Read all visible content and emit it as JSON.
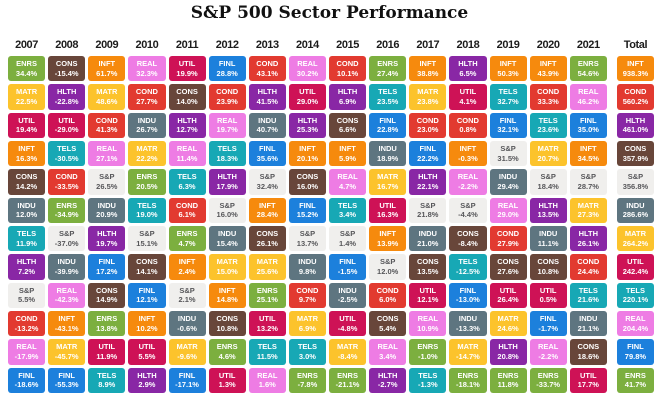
{
  "chart_data": {
    "type": "heatmap",
    "title": "S&P 500 Sector Performance",
    "note": "Quilt chart: each column ranks S&P 500 sectors by annual return, top=best. Values are percent returns.",
    "legend_position": "none",
    "value_suffix": "%",
    "sector_colors": {
      "ENRS": "#7CAF3F",
      "MATR": "#FCC32C",
      "UTIL": "#CE1256",
      "INFT": "#F68A0D",
      "CONS": "#68463A",
      "INDU": "#5E7580",
      "TELS": "#17A8B5",
      "HLTH": "#8927A5",
      "S&P": "#F0EFED",
      "COND": "#E23A30",
      "REAL": "#EE7CE4",
      "FINL": "#1C80DC"
    },
    "sector_text_colors": {
      "default": "#FFFFFF",
      "S&P": "#57575A"
    },
    "columns": [
      {
        "label": "2007",
        "cells": [
          [
            "ENRS",
            34.4
          ],
          [
            "MATR",
            22.5
          ],
          [
            "UTIL",
            19.4
          ],
          [
            "INFT",
            16.3
          ],
          [
            "CONS",
            14.2
          ],
          [
            "INDU",
            12.0
          ],
          [
            "TELS",
            11.9
          ],
          [
            "HLTH",
            7.2
          ],
          [
            "S&P",
            5.5
          ],
          [
            "COND",
            -13.2
          ],
          [
            "REAL",
            -17.9
          ],
          [
            "FINL",
            -18.6
          ]
        ]
      },
      {
        "label": "2008",
        "cells": [
          [
            "CONS",
            -15.4
          ],
          [
            "HLTH",
            -22.8
          ],
          [
            "UTIL",
            -29.0
          ],
          [
            "TELS",
            -30.5
          ],
          [
            "COND",
            -33.5
          ],
          [
            "ENRS",
            -34.9
          ],
          [
            "S&P",
            -37.0
          ],
          [
            "INDU",
            -39.9
          ],
          [
            "REAL",
            -42.3
          ],
          [
            "INFT",
            -43.1
          ],
          [
            "MATR",
            -45.7
          ],
          [
            "FINL",
            -55.3
          ]
        ]
      },
      {
        "label": "2009",
        "cells": [
          [
            "INFT",
            61.7
          ],
          [
            "MATR",
            48.6
          ],
          [
            "COND",
            41.3
          ],
          [
            "REAL",
            27.1
          ],
          [
            "S&P",
            26.5
          ],
          [
            "INDU",
            20.9
          ],
          [
            "HLTH",
            19.7
          ],
          [
            "FINL",
            17.2
          ],
          [
            "CONS",
            14.9
          ],
          [
            "ENRS",
            13.8
          ],
          [
            "UTIL",
            11.9
          ],
          [
            "TELS",
            8.9
          ]
        ]
      },
      {
        "label": "2010",
        "cells": [
          [
            "REAL",
            32.3
          ],
          [
            "COND",
            27.7
          ],
          [
            "INDU",
            26.7
          ],
          [
            "MATR",
            22.2
          ],
          [
            "ENRS",
            20.5
          ],
          [
            "TELS",
            19.0
          ],
          [
            "S&P",
            15.1
          ],
          [
            "CONS",
            14.1
          ],
          [
            "FINL",
            12.1
          ],
          [
            "INFT",
            10.2
          ],
          [
            "UTIL",
            5.5
          ],
          [
            "HLTH",
            2.9
          ]
        ]
      },
      {
        "label": "2011",
        "cells": [
          [
            "UTIL",
            19.9
          ],
          [
            "CONS",
            14.0
          ],
          [
            "HLTH",
            12.7
          ],
          [
            "REAL",
            11.4
          ],
          [
            "TELS",
            6.3
          ],
          [
            "COND",
            6.1
          ],
          [
            "ENRS",
            4.7
          ],
          [
            "INFT",
            2.4
          ],
          [
            "S&P",
            2.1
          ],
          [
            "INDU",
            -0.6
          ],
          [
            "MATR",
            -9.6
          ],
          [
            "FINL",
            -17.1
          ]
        ]
      },
      {
        "label": "2012",
        "cells": [
          [
            "FINL",
            28.8
          ],
          [
            "COND",
            23.9
          ],
          [
            "REAL",
            19.7
          ],
          [
            "TELS",
            18.3
          ],
          [
            "HLTH",
            17.9
          ],
          [
            "S&P",
            16.0
          ],
          [
            "INDU",
            15.4
          ],
          [
            "MATR",
            15.0
          ],
          [
            "INFT",
            14.8
          ],
          [
            "CONS",
            10.8
          ],
          [
            "ENRS",
            4.6
          ],
          [
            "UTIL",
            1.3
          ]
        ]
      },
      {
        "label": "2013",
        "cells": [
          [
            "COND",
            43.1
          ],
          [
            "HLTH",
            41.5
          ],
          [
            "INDU",
            40.7
          ],
          [
            "FINL",
            35.6
          ],
          [
            "S&P",
            32.4
          ],
          [
            "INFT",
            28.4
          ],
          [
            "CONS",
            26.1
          ],
          [
            "MATR",
            25.6
          ],
          [
            "ENRS",
            25.1
          ],
          [
            "UTIL",
            13.2
          ],
          [
            "TELS",
            11.5
          ],
          [
            "REAL",
            1.6
          ]
        ]
      },
      {
        "label": "2014",
        "cells": [
          [
            "REAL",
            30.2
          ],
          [
            "UTIL",
            29.0
          ],
          [
            "HLTH",
            25.3
          ],
          [
            "INFT",
            20.1
          ],
          [
            "CONS",
            16.0
          ],
          [
            "FINL",
            15.2
          ],
          [
            "S&P",
            13.7
          ],
          [
            "INDU",
            9.8
          ],
          [
            "COND",
            9.7
          ],
          [
            "MATR",
            6.9
          ],
          [
            "TELS",
            3.0
          ],
          [
            "ENRS",
            -7.8
          ]
        ]
      },
      {
        "label": "2015",
        "cells": [
          [
            "COND",
            10.1
          ],
          [
            "HLTH",
            6.9
          ],
          [
            "CONS",
            6.6
          ],
          [
            "INFT",
            5.9
          ],
          [
            "REAL",
            4.7
          ],
          [
            "TELS",
            3.4
          ],
          [
            "S&P",
            1.4
          ],
          [
            "FINL",
            -1.5
          ],
          [
            "INDU",
            -2.5
          ],
          [
            "UTIL",
            -4.8
          ],
          [
            "MATR",
            -8.4
          ],
          [
            "ENRS",
            -21.1
          ]
        ]
      },
      {
        "label": "2016",
        "cells": [
          [
            "ENRS",
            27.4
          ],
          [
            "TELS",
            23.5
          ],
          [
            "FINL",
            22.8
          ],
          [
            "INDU",
            18.9
          ],
          [
            "MATR",
            16.7
          ],
          [
            "UTIL",
            16.3
          ],
          [
            "INFT",
            13.9
          ],
          [
            "S&P",
            12.0
          ],
          [
            "COND",
            6.0
          ],
          [
            "CONS",
            5.4
          ],
          [
            "REAL",
            3.4
          ],
          [
            "HLTH",
            -2.7
          ]
        ]
      },
      {
        "label": "2017",
        "cells": [
          [
            "INFT",
            38.8
          ],
          [
            "MATR",
            23.8
          ],
          [
            "COND",
            23.0
          ],
          [
            "FINL",
            22.2
          ],
          [
            "HLTH",
            22.1
          ],
          [
            "S&P",
            21.8
          ],
          [
            "INDU",
            21.0
          ],
          [
            "CONS",
            13.5
          ],
          [
            "UTIL",
            12.1
          ],
          [
            "REAL",
            10.9
          ],
          [
            "ENRS",
            -1.0
          ],
          [
            "TELS",
            -1.3
          ]
        ]
      },
      {
        "label": "2018",
        "cells": [
          [
            "HLTH",
            6.5
          ],
          [
            "UTIL",
            4.1
          ],
          [
            "COND",
            0.8
          ],
          [
            "INFT",
            -0.3
          ],
          [
            "REAL",
            -2.2
          ],
          [
            "S&P",
            -4.4
          ],
          [
            "CONS",
            -8.4
          ],
          [
            "TELS",
            -12.5
          ],
          [
            "FINL",
            -13.0
          ],
          [
            "INDU",
            -13.3
          ],
          [
            "MATR",
            -14.7
          ],
          [
            "ENRS",
            -18.1
          ]
        ]
      },
      {
        "label": "2019",
        "cells": [
          [
            "INFT",
            50.3
          ],
          [
            "TELS",
            32.7
          ],
          [
            "FINL",
            32.1
          ],
          [
            "S&P",
            31.5
          ],
          [
            "INDU",
            29.4
          ],
          [
            "REAL",
            29.0
          ],
          [
            "COND",
            27.9
          ],
          [
            "CONS",
            27.6
          ],
          [
            "UTIL",
            26.4
          ],
          [
            "MATR",
            24.6
          ],
          [
            "HLTH",
            20.8
          ],
          [
            "ENRS",
            11.8
          ]
        ]
      },
      {
        "label": "2020",
        "cells": [
          [
            "INFT",
            43.9
          ],
          [
            "COND",
            33.3
          ],
          [
            "TELS",
            23.6
          ],
          [
            "MATR",
            20.7
          ],
          [
            "S&P",
            18.4
          ],
          [
            "HLTH",
            13.5
          ],
          [
            "INDU",
            11.1
          ],
          [
            "CONS",
            10.8
          ],
          [
            "UTIL",
            0.5
          ],
          [
            "FINL",
            -1.7
          ],
          [
            "REAL",
            -2.2
          ],
          [
            "ENRS",
            -33.7
          ]
        ]
      },
      {
        "label": "2021",
        "cells": [
          [
            "ENRS",
            54.6
          ],
          [
            "REAL",
            46.2
          ],
          [
            "FINL",
            35.0
          ],
          [
            "INFT",
            34.5
          ],
          [
            "S&P",
            28.7
          ],
          [
            "MATR",
            27.3
          ],
          [
            "HLTH",
            26.1
          ],
          [
            "COND",
            24.4
          ],
          [
            "TELS",
            21.6
          ],
          [
            "INDU",
            21.1
          ],
          [
            "CONS",
            18.6
          ],
          [
            "UTIL",
            17.7
          ]
        ]
      },
      {
        "label": "Total",
        "cells": [
          [
            "INFT",
            938.3
          ],
          [
            "COND",
            560.2
          ],
          [
            "HLTH",
            461.0
          ],
          [
            "CONS",
            357.9
          ],
          [
            "S&P",
            356.8
          ],
          [
            "INDU",
            286.6
          ],
          [
            "MATR",
            264.2
          ],
          [
            "UTIL",
            242.4
          ],
          [
            "TELS",
            220.1
          ],
          [
            "REAL",
            204.4
          ],
          [
            "FINL",
            79.8
          ],
          [
            "ENRS",
            41.7
          ]
        ]
      }
    ]
  }
}
